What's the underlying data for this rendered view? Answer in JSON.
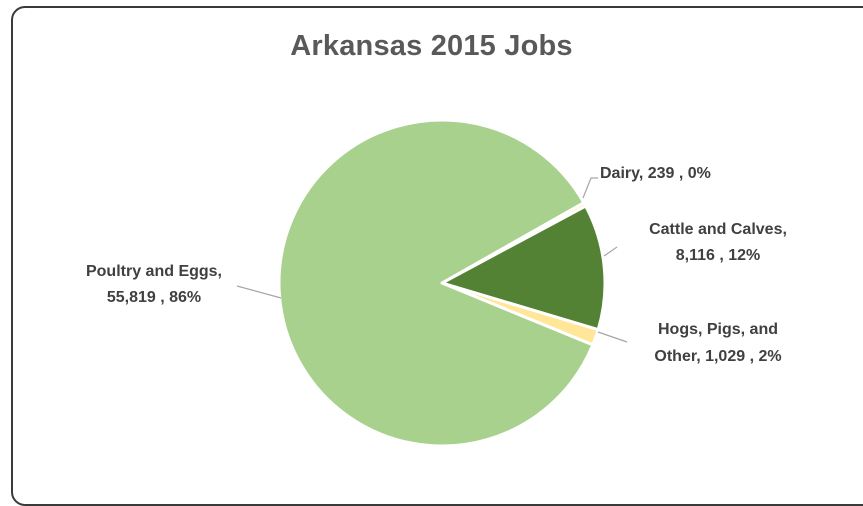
{
  "chart_data": {
    "type": "pie",
    "title": "Arkansas 2015 Jobs",
    "slices": [
      {
        "name": "Dairy",
        "value": 239,
        "percent": "0%",
        "label_lines": [
          "Dairy,  239 , 0%"
        ],
        "color": "#ffe699"
      },
      {
        "name": "Cattle and Calves",
        "value": 8116,
        "percent": "12%",
        "label_lines": [
          "Cattle and Calves,",
          "8,116 , 12%"
        ],
        "color": "#548235"
      },
      {
        "name": "Hogs, Pigs, and Other",
        "value": 1029,
        "percent": "2%",
        "label_lines": [
          "Hogs, Pigs, and",
          "Other,  1,029 , 2%"
        ],
        "color": "#ffe699"
      },
      {
        "name": "Poultry and Eggs",
        "value": 55819,
        "percent": "86%",
        "label_lines": [
          "Poultry and Eggs,",
          "55,819 , 86%"
        ],
        "color": "#a9d18e"
      }
    ]
  }
}
